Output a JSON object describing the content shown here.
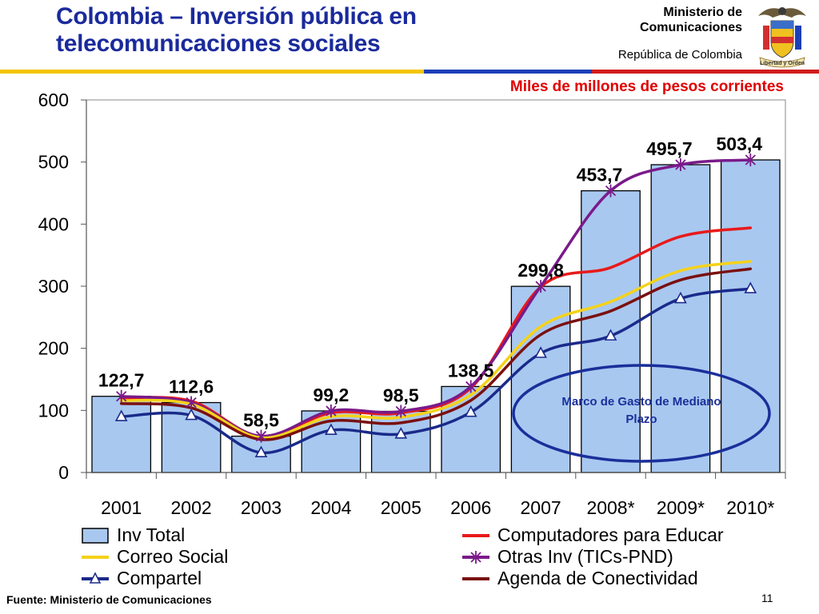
{
  "header": {
    "title": "Colombia – Inversión pública en telecomunicaciones sociales",
    "ministry": "Ministerio de Comunicaciones",
    "republic": "República de Colombia",
    "crest_motto": "Libertad y Orden"
  },
  "colors": {
    "bar_fill": "#a8c8f0",
    "title": "#1a2a9c",
    "inv_total": "#a8c8f0",
    "computadores": "#e81a1a",
    "correo": "#f5d21a",
    "otras": "#7a1a8a",
    "compartel": "#1a2a8a",
    "agenda": "#7a1010",
    "ellipse": "#1b2f9a"
  },
  "chart_data": {
    "type": "bar",
    "categories": [
      "2001",
      "2002",
      "2003",
      "2004",
      "2005",
      "2006",
      "2007",
      "2008*",
      "2009*",
      "2010*"
    ],
    "ylim": [
      0,
      600
    ],
    "yticks": [
      "0",
      "100",
      "200",
      "300",
      "400",
      "500",
      "600"
    ],
    "units_label": "Miles de millones de  pesos corrientes",
    "bar_labels": [
      "122,7",
      "112,6",
      "58,5",
      "99,2",
      "98,5",
      "138,5",
      "299,8",
      "453,7",
      "495,7",
      "503,4"
    ],
    "series": [
      {
        "name": "Inv Total",
        "kind": "bar",
        "values": [
          122.7,
          112.6,
          58.5,
          99.2,
          98.5,
          138.5,
          299.8,
          453.7,
          495.7,
          503.4
        ]
      },
      {
        "name": "Computadores para Educar",
        "kind": "line",
        "values": [
          120,
          115,
          58,
          96,
          96,
          136,
          299,
          330,
          380,
          394
        ]
      },
      {
        "name": "Otras Inv (TICs-PND)",
        "kind": "line",
        "marker": "star",
        "values": [
          122.7,
          112.6,
          58.5,
          99.2,
          98.5,
          138.5,
          299.8,
          453.7,
          495.7,
          503.4
        ]
      },
      {
        "name": "Correo Social",
        "kind": "line",
        "values": [
          116,
          110,
          56,
          90,
          89,
          125,
          235,
          275,
          325,
          340
        ]
      },
      {
        "name": "Agenda de Conectividad",
        "kind": "line",
        "values": [
          111,
          104,
          53,
          83,
          80,
          116,
          222,
          260,
          310,
          328
        ]
      },
      {
        "name": "Compartel",
        "kind": "line",
        "marker": "triangle",
        "values": [
          90,
          92,
          32,
          68,
          62,
          97,
          192,
          220,
          280,
          296
        ]
      }
    ],
    "annotation": "Marco de Gasto de Mediano Plazo"
  },
  "legend": {
    "left": [
      {
        "label": "Inv Total",
        "key": "inv_total",
        "style": "box"
      },
      {
        "label": "Correo Social",
        "key": "correo",
        "style": "line"
      },
      {
        "label": "Compartel",
        "key": "compartel",
        "style": "triangle"
      }
    ],
    "right": [
      {
        "label": "Computadores para Educar",
        "key": "computadores",
        "style": "line"
      },
      {
        "label": "Otras Inv (TICs-PND)",
        "key": "otras",
        "style": "star"
      },
      {
        "label": "Agenda de Conectividad",
        "key": "agenda",
        "style": "line"
      }
    ]
  },
  "footer": {
    "source": "Fuente: Ministerio de Comunicaciones",
    "page": "11"
  }
}
